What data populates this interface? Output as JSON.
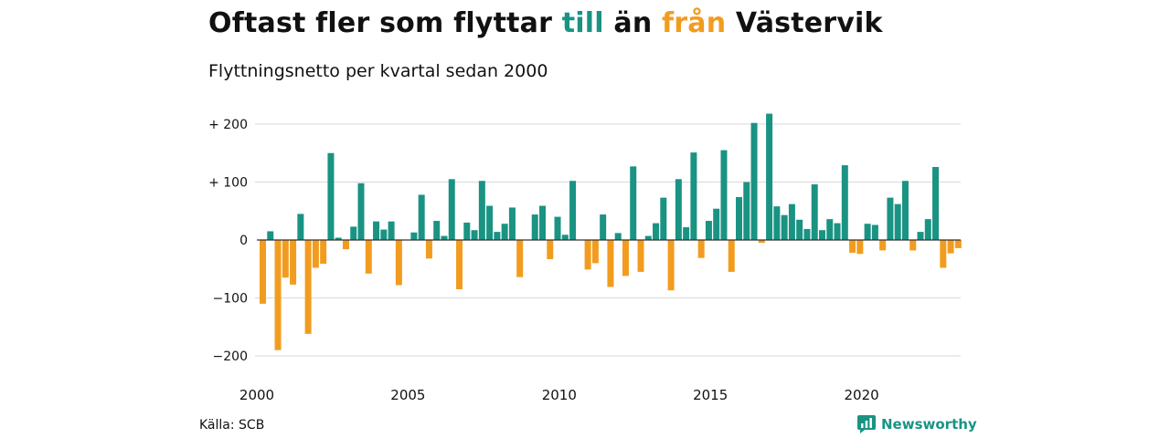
{
  "title": {
    "part1": "Oftast fler som flyttar ",
    "highlight_in": "till",
    "part2": " än ",
    "highlight_out": "från",
    "part3": " Västervik"
  },
  "subtitle": "Flyttningsnetto per kvartal sedan 2000",
  "source": "Källa: SCB",
  "brand": {
    "name": "Newsworthy",
    "icon": "newsworthy-logo-icon"
  },
  "colors": {
    "positive": "#1a9383",
    "negative": "#f29c1f",
    "grid": "#d9d9d9",
    "zero_line": "#333333"
  },
  "chart_data": {
    "type": "bar",
    "x_start": 2000,
    "periods_per_year": 4,
    "ylim": [
      -215,
      225
    ],
    "yticks": [
      {
        "value": 200,
        "label": "+ 200"
      },
      {
        "value": 100,
        "label": "+ 100"
      },
      {
        "value": 0,
        "label": "0"
      },
      {
        "value": -100,
        "label": "−100"
      },
      {
        "value": -200,
        "label": "−200"
      }
    ],
    "xticks": [
      "2000",
      "2005",
      "2010",
      "2015",
      "2020"
    ],
    "values": [
      -110,
      15,
      -190,
      -65,
      -77,
      45,
      -162,
      -48,
      -41,
      150,
      4,
      -16,
      23,
      98,
      -58,
      32,
      18,
      32,
      -78,
      0,
      13,
      78,
      -32,
      33,
      7,
      105,
      -85,
      30,
      17,
      102,
      59,
      14,
      28,
      56,
      -64,
      0,
      44,
      59,
      -33,
      40,
      9,
      102,
      0,
      -51,
      -40,
      44,
      -81,
      12,
      -62,
      127,
      -55,
      7,
      29,
      73,
      -87,
      105,
      22,
      151,
      -31,
      33,
      54,
      155,
      -55,
      74,
      100,
      202,
      -5,
      218,
      58,
      43,
      62,
      35,
      19,
      96,
      17,
      36,
      29,
      129,
      -22,
      -24,
      28,
      26,
      -18,
      73,
      62,
      102,
      -18,
      14,
      36,
      126,
      -48,
      -23,
      -14
    ]
  }
}
